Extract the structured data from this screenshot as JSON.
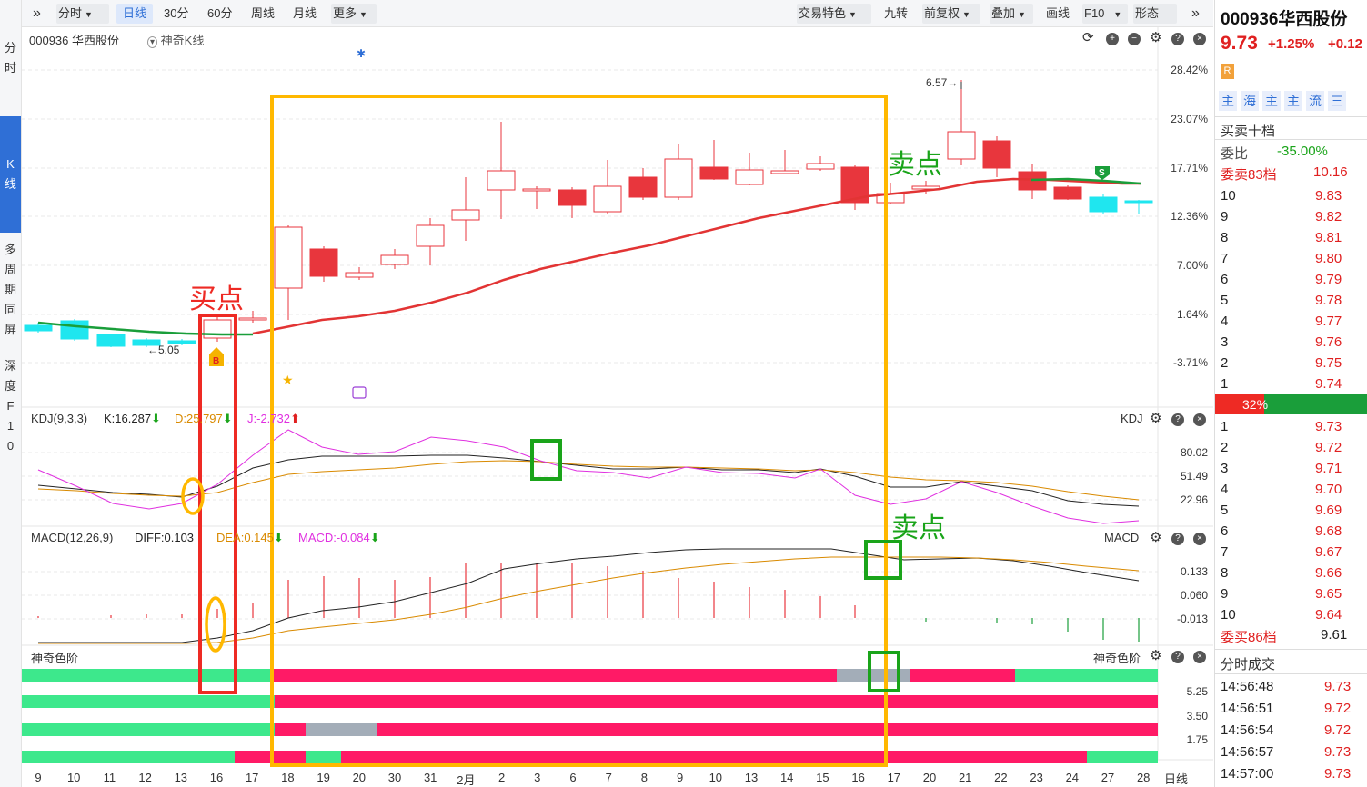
{
  "nav_left": {
    "fenshi": "分时",
    "kline": "K线",
    "multi": "多周期同屏",
    "depth": "深度F10"
  },
  "toolbar": {
    "periods": [
      "分时",
      "日线",
      "30分",
      "60分",
      "周线",
      "月线",
      "更多"
    ],
    "right_items": [
      "交易特色",
      "九转",
      "前复权",
      "叠加",
      "画线",
      "F10",
      "形态"
    ],
    "selected": "日线"
  },
  "chart": {
    "stock_label": "000936 华西股份",
    "indicator_label": "神奇K线",
    "y_axis": [
      "28.42%",
      "23.07%",
      "17.71%",
      "12.36%",
      "7.00%",
      "1.64%",
      "-3.71%"
    ],
    "annot_max": "6.57→",
    "annot_min": "←5.05",
    "buy_label": "买点",
    "sell_label_1": "卖点",
    "sell_label_2": "卖点",
    "kdj": {
      "name": "KDJ(9,3,3)",
      "k": "K:16.287",
      "d": "D:25.797",
      "j": "J:-2.732",
      "right_label": "KDJ",
      "y_axis": [
        "80.02",
        "51.49",
        "22.96"
      ]
    },
    "macd": {
      "name": "MACD(12,26,9)",
      "diff": "DIFF:0.103",
      "dea": "DEA:0.145",
      "macd": "MACD:-0.084",
      "right_label": "MACD",
      "y_axis": [
        "0.133",
        "0.060",
        "-0.013"
      ]
    },
    "sqsj": {
      "name": "神奇色阶",
      "right_label": "神奇色阶",
      "y_axis": [
        "5.25",
        "3.50",
        "1.75"
      ]
    },
    "x_axis": [
      "9",
      "10",
      "11",
      "12",
      "13",
      "16",
      "17",
      "18",
      "19",
      "20",
      "30",
      "31",
      "2月",
      "2",
      "3",
      "6",
      "7",
      "8",
      "9",
      "10",
      "13",
      "14",
      "15",
      "16",
      "17",
      "20",
      "21",
      "22",
      "23",
      "24",
      "27",
      "28"
    ],
    "x_right_label": "日线"
  },
  "right_panel": {
    "code_name": "000936华西股份",
    "price": "9.73",
    "change_pct": "+1.25%",
    "change_abs": "+0.12",
    "r_badge": "R",
    "tabs": [
      "主",
      "海",
      "主",
      "主",
      "流",
      "三"
    ],
    "orderbook_title": "买卖十档",
    "weibi_label": "委比",
    "weibi_value": "-35.00%",
    "sell_total_label": "委卖83档",
    "sell_total_price": "10.16",
    "sells": [
      {
        "lvl": "10",
        "price": "9.83"
      },
      {
        "lvl": "9",
        "price": "9.82"
      },
      {
        "lvl": "8",
        "price": "9.81"
      },
      {
        "lvl": "7",
        "price": "9.80"
      },
      {
        "lvl": "6",
        "price": "9.79"
      },
      {
        "lvl": "5",
        "price": "9.78"
      },
      {
        "lvl": "4",
        "price": "9.77"
      },
      {
        "lvl": "3",
        "price": "9.76"
      },
      {
        "lvl": "2",
        "price": "9.75"
      },
      {
        "lvl": "1",
        "price": "9.74"
      }
    ],
    "ratio_pct": "32%",
    "ratio_value": 0.32,
    "buys": [
      {
        "lvl": "1",
        "price": "9.73"
      },
      {
        "lvl": "2",
        "price": "9.72"
      },
      {
        "lvl": "3",
        "price": "9.71"
      },
      {
        "lvl": "4",
        "price": "9.70"
      },
      {
        "lvl": "5",
        "price": "9.69"
      },
      {
        "lvl": "6",
        "price": "9.68"
      },
      {
        "lvl": "7",
        "price": "9.67"
      },
      {
        "lvl": "8",
        "price": "9.66"
      },
      {
        "lvl": "9",
        "price": "9.65"
      },
      {
        "lvl": "10",
        "price": "9.64"
      }
    ],
    "buy_total_label": "委买86档",
    "buy_total_price": "9.61",
    "trades_title": "分时成交",
    "trades": [
      {
        "time": "14:56:48",
        "price": "9.73"
      },
      {
        "time": "14:56:51",
        "price": "9.72"
      },
      {
        "time": "14:56:54",
        "price": "9.72"
      },
      {
        "time": "14:56:57",
        "price": "9.73"
      },
      {
        "time": "14:57:00",
        "price": "9.73"
      }
    ]
  },
  "colors": {
    "up": "#e8363d",
    "down": "#1fe6ef",
    "ma": "#e23434",
    "ma_green": "#1a9e3a",
    "accent": "#2f6fd6",
    "buy_box": "#ee2a24",
    "big_box": "#ffb800",
    "sell_box": "#1aa41a",
    "band_pink": "#ff1a66",
    "band_green": "#3de88c",
    "band_gray": "#a3adb8"
  }
}
